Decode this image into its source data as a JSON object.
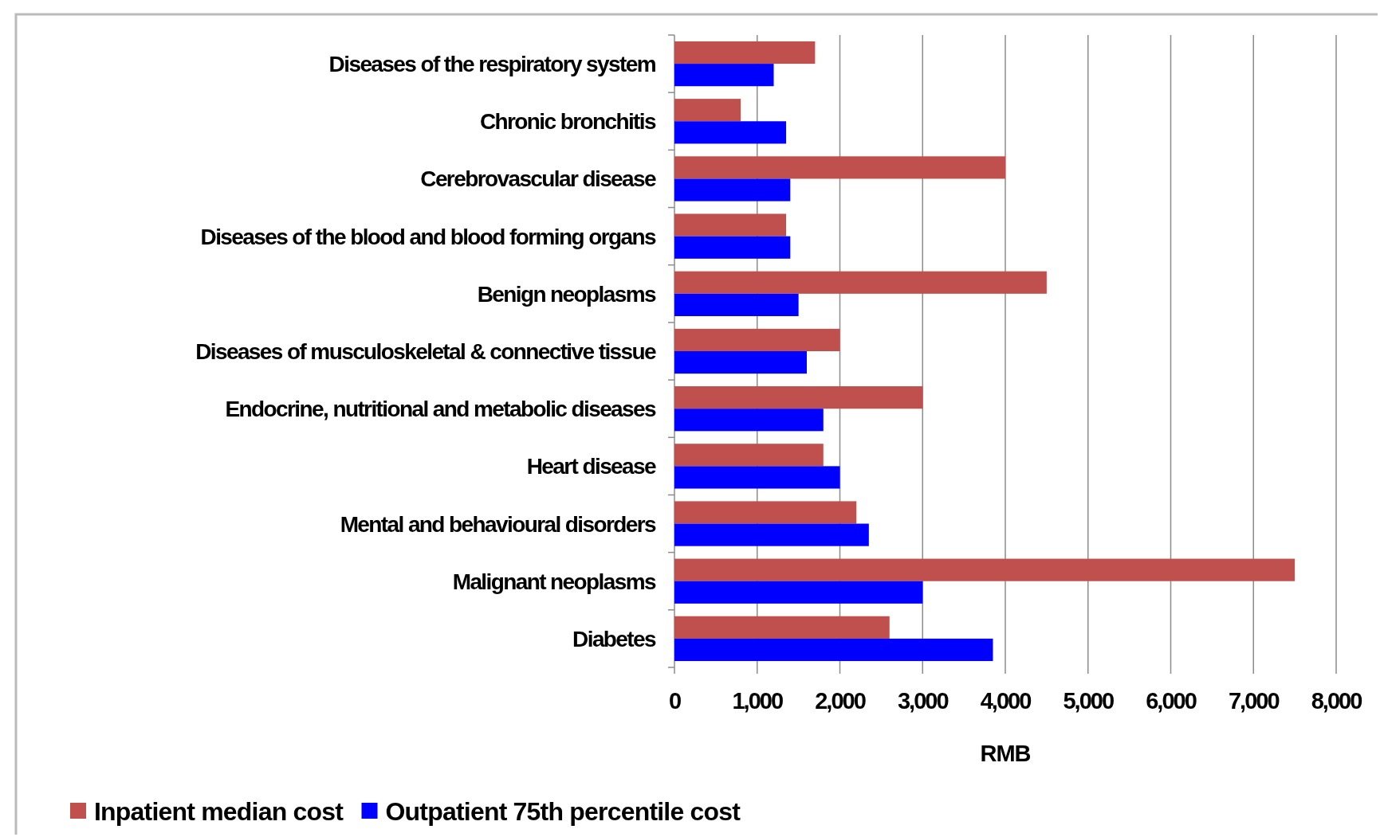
{
  "chart_data": {
    "type": "bar",
    "orientation": "horizontal",
    "xlabel": "RMB",
    "categories": [
      "Diseases of the respiratory system",
      "Chronic bronchitis",
      "Cerebrovascular disease",
      "Diseases of the blood and blood forming organs",
      "Benign neoplasms",
      "Diseases of musculoskeletal & connective tissue",
      "Endocrine, nutritional and metabolic diseases",
      "Heart disease",
      "Mental and behavioural disorders",
      "Malignant neoplasms",
      "Diabetes"
    ],
    "series": [
      {
        "name": "Inpatient median cost",
        "color": "#c0504d",
        "values": [
          1700,
          800,
          4000,
          1350,
          4500,
          2000,
          3000,
          1800,
          2200,
          7500,
          2600
        ]
      },
      {
        "name": "Outpatient 75th percentile cost",
        "color": "#0000ff",
        "values": [
          1200,
          1350,
          1400,
          1400,
          1500,
          1600,
          1800,
          2000,
          2350,
          3000,
          3850
        ]
      }
    ],
    "xlim": [
      0,
      8000
    ],
    "xticks": [
      {
        "value": 0,
        "label": "0"
      },
      {
        "value": 1000,
        "label": "1,000"
      },
      {
        "value": 2000,
        "label": "2,000"
      },
      {
        "value": 3000,
        "label": "3,000"
      },
      {
        "value": 4000,
        "label": "4,000"
      },
      {
        "value": 5000,
        "label": "5,000"
      },
      {
        "value": 6000,
        "label": "6,000"
      },
      {
        "value": 7000,
        "label": "7,000"
      },
      {
        "value": 8000,
        "label": "8,000"
      }
    ],
    "grid": "x",
    "legend": "bottom left"
  }
}
